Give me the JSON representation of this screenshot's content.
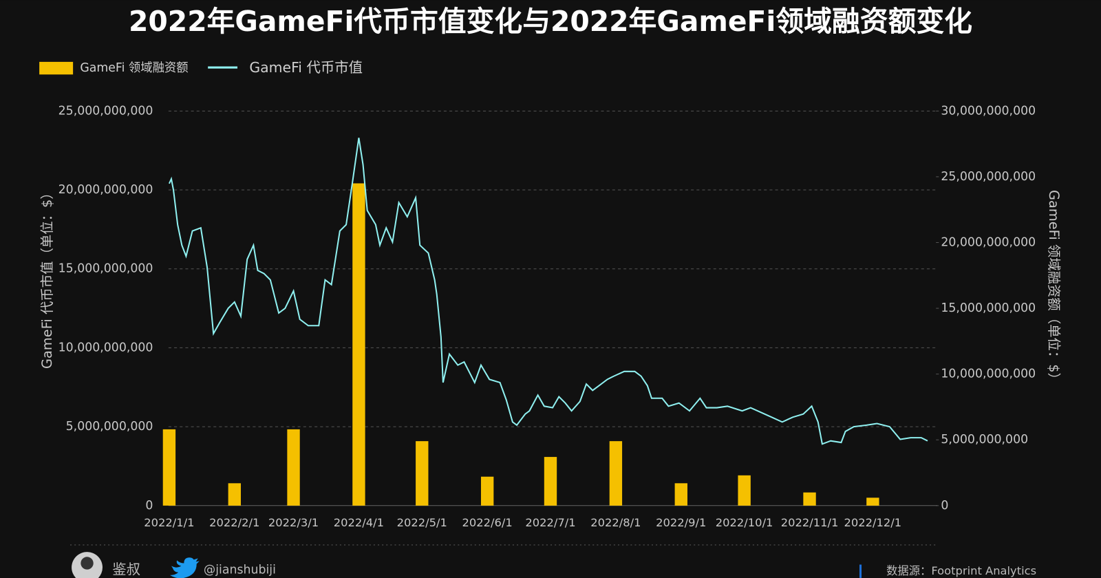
{
  "chart_data": {
    "type": "combo",
    "title": "2022年GameFi代币市值变化与2022年GameFi领域融资额变化",
    "y_label": "GameFi 代币市值（单位：$）",
    "y2_label": "GameFi 领域融资额（单位：$）",
    "legend": "top-left",
    "grid": true,
    "categories": [
      "2022/1/1",
      "2022/2/1",
      "2022/3/1",
      "2022/4/1",
      "2022/5/1",
      "2022/6/1",
      "2022/7/1",
      "2022/8/1",
      "2022/9/1",
      "2022/10/1",
      "2022/11/1",
      "2022/12/1"
    ],
    "xlim": [
      "2022/1/1",
      "2022/12/31"
    ],
    "ylim": [
      0,
      25000000000
    ],
    "yticks": [
      0,
      {
        "value": 5000000000,
        "label": "5,000,000,000"
      },
      {
        "value": 10000000000,
        "label": "10,000,000,000"
      },
      {
        "value": 15000000000,
        "label": "15,000,000,000"
      },
      {
        "value": 20000000000,
        "label": "20,000,000,000"
      },
      {
        "value": 25000000000,
        "label": "25,000,000,000"
      }
    ],
    "y2lim": [
      0,
      30000000000
    ],
    "y2ticks": [
      0,
      {
        "value": 5000000000,
        "label": "5,000,000,000"
      },
      {
        "value": 10000000000,
        "label": "10,000,000,000"
      },
      {
        "value": 15000000000,
        "label": "15,000,000,000"
      },
      {
        "value": 20000000000,
        "label": "20,000,000,000"
      },
      {
        "value": 25000000000,
        "label": "25,000,000,000"
      },
      {
        "value": 30000000000,
        "label": "30,000,000,000"
      }
    ],
    "series": [
      {
        "name": "GameFi 领域融资额",
        "type": "bar",
        "axis": "y2",
        "color": "#f5c000",
        "values": [
          5800000000.0,
          1700000000.0,
          5800000000.0,
          24500000000.0,
          4900000000.0,
          2200000000.0,
          3700000000.0,
          4900000000.0,
          1700000000.0,
          2300000000.0,
          1000000000.0,
          600000000.0
        ]
      },
      {
        "name": "GameFi 代币市值",
        "type": "line",
        "color": "#8ff0f0",
        "x": [
          "2022/1/1",
          "2022/1/2",
          "2022/1/3",
          "2022/1/5",
          "2022/1/7",
          "2022/1/9",
          "2022/1/12",
          "2022/1/16",
          "2022/1/19",
          "2022/1/22",
          "2022/1/25",
          "2022/1/29",
          "2022/2/1",
          "2022/2/4",
          "2022/2/7",
          "2022/2/10",
          "2022/2/12",
          "2022/2/15",
          "2022/2/18",
          "2022/2/22",
          "2022/2/25",
          "2022/3/1",
          "2022/3/4",
          "2022/3/8",
          "2022/3/13",
          "2022/3/16",
          "2022/3/19",
          "2022/3/23",
          "2022/3/26",
          "2022/3/29",
          "2022/4/1",
          "2022/4/3",
          "2022/4/5",
          "2022/4/9",
          "2022/4/11",
          "2022/4/14",
          "2022/4/17",
          "2022/4/20",
          "2022/4/24",
          "2022/4/28",
          "2022/4/30",
          "2022/5/4",
          "2022/5/7",
          "2022/5/8",
          "2022/5/10",
          "2022/5/11",
          "2022/5/14",
          "2022/5/18",
          "2022/5/21",
          "2022/5/26",
          "2022/5/29",
          "2022/6/2",
          "2022/6/7",
          "2022/6/10",
          "2022/6/13",
          "2022/6/15",
          "2022/6/19",
          "2022/6/21",
          "2022/6/25",
          "2022/6/28",
          "2022/7/2",
          "2022/7/5",
          "2022/7/8",
          "2022/7/11",
          "2022/7/15",
          "2022/7/18",
          "2022/7/21",
          "2022/7/24",
          "2022/7/28",
          "2022/7/31",
          "2022/8/5",
          "2022/8/10",
          "2022/8/13",
          "2022/8/16",
          "2022/8/18",
          "2022/8/23",
          "2022/8/26",
          "2022/8/31",
          "2022/9/5",
          "2022/9/10",
          "2022/9/13",
          "2022/9/18",
          "2022/9/23",
          "2022/9/30",
          "2022/10/4",
          "2022/10/9",
          "2022/10/14",
          "2022/10/19",
          "2022/10/24",
          "2022/10/29",
          "2022/11/2",
          "2022/11/5",
          "2022/11/7",
          "2022/11/11",
          "2022/11/16",
          "2022/11/18",
          "2022/11/22",
          "2022/11/28",
          "2022/12/3",
          "2022/12/9",
          "2022/12/14",
          "2022/12/19",
          "2022/12/24",
          "2022/12/27"
        ],
        "values": [
          20400000000.0,
          20700000000.0,
          20000000000.0,
          17800000000.0,
          16500000000.0,
          15800000000.0,
          17400000000.0,
          17600000000.0,
          15100000000.0,
          10900000000.0,
          11600000000.0,
          12500000000.0,
          12900000000.0,
          12000000000.0,
          15600000000.0,
          16500000000.0,
          14900000000.0,
          14700000000.0,
          14300000000.0,
          12200000000.0,
          12500000000.0,
          13600000000.0,
          11800000000.0,
          11400000000.0,
          11400000000.0,
          14300000000.0,
          14000000000.0,
          17400000000.0,
          17800000000.0,
          20500000000.0,
          23300000000.0,
          21600000000.0,
          18700000000.0,
          17800000000.0,
          16500000000.0,
          17600000000.0,
          16700000000.0,
          19200000000.0,
          18300000000.0,
          19500000000.0,
          16500000000.0,
          16000000000.0,
          14300000000.0,
          13400000000.0,
          10700000000.0,
          7800000000.0,
          9600000000.0,
          8900000000.0,
          9100000000.0,
          7800000000.0,
          8900000000.0,
          8000000000.0,
          7800000000.0,
          6700000000.0,
          5300000000.0,
          5100000000.0,
          5800000000.0,
          6000000000.0,
          7000000000.0,
          6300000000.0,
          6200000000.0,
          6900000000.0,
          6500000000.0,
          6000000000.0,
          6600000000.0,
          7700000000.0,
          7300000000.0,
          7600000000.0,
          8000000000.0,
          8200000000.0,
          8500000000.0,
          8500000000.0,
          8200000000.0,
          7600000000.0,
          6800000000.0,
          6800000000.0,
          6300000000.0,
          6500000000.0,
          6000000000.0,
          6800000000.0,
          6200000000.0,
          6200000000.0,
          6300000000.0,
          6000000000.0,
          6200000000.0,
          5900000000.0,
          5600000000.0,
          5300000000.0,
          5600000000.0,
          5800000000.0,
          6300000000.0,
          5300000000.0,
          3900000000.0,
          4100000000.0,
          4000000000.0,
          4700000000.0,
          5000000000.0,
          5100000000.0,
          5200000000.0,
          5000000000.0,
          4200000000.0,
          4300000000.0,
          4300000000.0,
          4100000000.0
        ]
      }
    ]
  },
  "footer": {
    "author": "鉴叔",
    "handle": "@jianshubiji",
    "source": "数据源：Footprint Analytics"
  }
}
